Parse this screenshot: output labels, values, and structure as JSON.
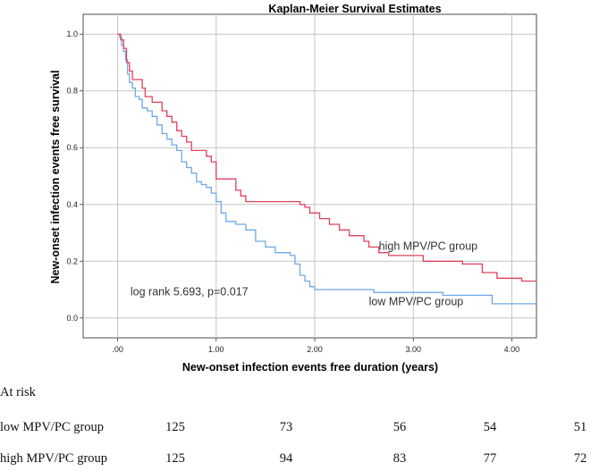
{
  "chart_data": {
    "type": "line",
    "subtype": "step",
    "title": "Kaplan-Meier Survival Estimates",
    "xlabel": "New-onset infection events free duration (years)",
    "ylabel": "New-onset infection events free survival",
    "xlim": [
      -0.35,
      4.25
    ],
    "ylim": [
      -0.07,
      1.07
    ],
    "x_ticks": [
      0,
      1,
      2,
      3,
      4
    ],
    "x_tick_labels": [
      ".00",
      "1.00",
      "2.00",
      "3.00",
      "4.00"
    ],
    "y_ticks": [
      0,
      0.2,
      0.4,
      0.6,
      0.8,
      1.0
    ],
    "y_tick_labels": [
      "0.0",
      "0.2",
      "0.4",
      "0.6",
      "0.8",
      "1.0"
    ],
    "grid": true,
    "series": [
      {
        "name": "low MPV/PC group",
        "color": "#6fa8e8",
        "points": [
          [
            0,
            1.0
          ],
          [
            0.02,
            0.99
          ],
          [
            0.04,
            0.96
          ],
          [
            0.06,
            0.94
          ],
          [
            0.08,
            0.91
          ],
          [
            0.1,
            0.86
          ],
          [
            0.12,
            0.83
          ],
          [
            0.15,
            0.81
          ],
          [
            0.18,
            0.78
          ],
          [
            0.22,
            0.77
          ],
          [
            0.25,
            0.74
          ],
          [
            0.3,
            0.73
          ],
          [
            0.35,
            0.71
          ],
          [
            0.4,
            0.68
          ],
          [
            0.45,
            0.65
          ],
          [
            0.5,
            0.63
          ],
          [
            0.55,
            0.61
          ],
          [
            0.6,
            0.59
          ],
          [
            0.65,
            0.55
          ],
          [
            0.7,
            0.53
          ],
          [
            0.75,
            0.51
          ],
          [
            0.8,
            0.48
          ],
          [
            0.85,
            0.47
          ],
          [
            0.9,
            0.46
          ],
          [
            0.95,
            0.44
          ],
          [
            1.0,
            0.41
          ],
          [
            1.05,
            0.37
          ],
          [
            1.1,
            0.34
          ],
          [
            1.2,
            0.33
          ],
          [
            1.3,
            0.31
          ],
          [
            1.4,
            0.27
          ],
          [
            1.5,
            0.25
          ],
          [
            1.6,
            0.23
          ],
          [
            1.75,
            0.22
          ],
          [
            1.8,
            0.19
          ],
          [
            1.85,
            0.15
          ],
          [
            1.9,
            0.13
          ],
          [
            1.95,
            0.11
          ],
          [
            2.0,
            0.1
          ],
          [
            2.5,
            0.1
          ],
          [
            2.6,
            0.09
          ],
          [
            3.25,
            0.09
          ],
          [
            3.3,
            0.08
          ],
          [
            3.7,
            0.08
          ],
          [
            3.8,
            0.05
          ],
          [
            4.25,
            0.05
          ]
        ]
      },
      {
        "name": "high MPV/PC group",
        "color": "#e0415d",
        "points": [
          [
            0,
            1.0
          ],
          [
            0.03,
            0.98
          ],
          [
            0.06,
            0.95
          ],
          [
            0.09,
            0.9
          ],
          [
            0.12,
            0.87
          ],
          [
            0.15,
            0.84
          ],
          [
            0.25,
            0.81
          ],
          [
            0.28,
            0.78
          ],
          [
            0.35,
            0.76
          ],
          [
            0.45,
            0.73
          ],
          [
            0.5,
            0.71
          ],
          [
            0.55,
            0.69
          ],
          [
            0.6,
            0.66
          ],
          [
            0.65,
            0.64
          ],
          [
            0.7,
            0.62
          ],
          [
            0.75,
            0.59
          ],
          [
            0.9,
            0.57
          ],
          [
            0.95,
            0.55
          ],
          [
            1.0,
            0.49
          ],
          [
            1.15,
            0.49
          ],
          [
            1.2,
            0.45
          ],
          [
            1.25,
            0.43
          ],
          [
            1.3,
            0.41
          ],
          [
            1.55,
            0.41
          ],
          [
            1.8,
            0.41
          ],
          [
            1.85,
            0.4
          ],
          [
            1.9,
            0.39
          ],
          [
            1.95,
            0.37
          ],
          [
            2.05,
            0.35
          ],
          [
            2.15,
            0.33
          ],
          [
            2.25,
            0.31
          ],
          [
            2.35,
            0.29
          ],
          [
            2.5,
            0.27
          ],
          [
            2.55,
            0.25
          ],
          [
            2.65,
            0.23
          ],
          [
            2.75,
            0.22
          ],
          [
            3.1,
            0.2
          ],
          [
            3.5,
            0.19
          ],
          [
            3.7,
            0.16
          ],
          [
            3.85,
            0.14
          ],
          [
            4.1,
            0.13
          ],
          [
            4.25,
            0.13
          ]
        ]
      }
    ],
    "annotations": [
      {
        "text": "high MPV/PC group",
        "x": 2.65,
        "y": 0.24
      },
      {
        "text": "low MPV/PC group",
        "x": 2.55,
        "y": 0.045
      },
      {
        "text": "log rank 5.693, p=0.017",
        "x": 0.13,
        "y": 0.08
      }
    ]
  },
  "risk_table": {
    "heading": "At risk",
    "rows": [
      {
        "label": "low MPV/PC group",
        "values": [
          "125",
          "73",
          "56",
          "54",
          "51"
        ]
      },
      {
        "label": "high MPV/PC group",
        "values": [
          "125",
          "94",
          "83",
          "77",
          "72"
        ]
      }
    ]
  }
}
